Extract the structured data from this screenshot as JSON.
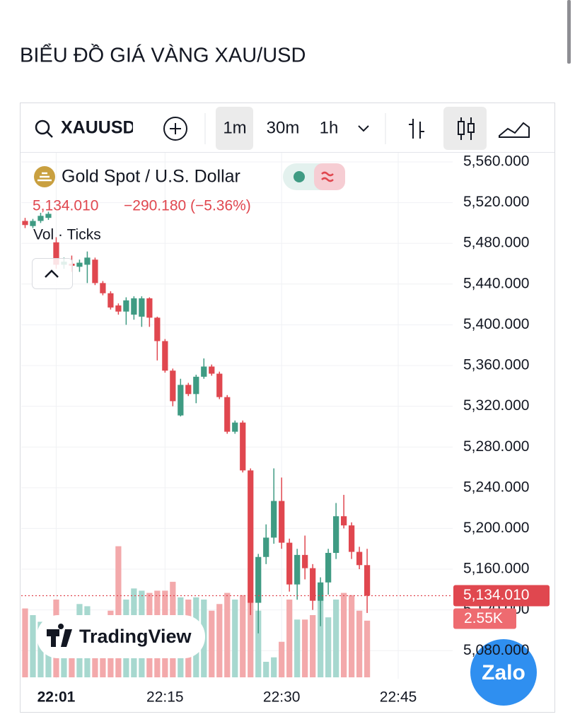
{
  "header": {
    "title": "BIỂU ĐỒ GIÁ VÀNG XAU/USD"
  },
  "toolbar": {
    "symbol": "XAUUSD",
    "intervals": [
      "1m",
      "30m",
      "1h"
    ]
  },
  "legend": {
    "name": "Gold Spot / U.S. Dollar",
    "last": "5,134.010",
    "change": "−290.180 (−5.36%)",
    "indicator": "Vol · Ticks"
  },
  "branding": {
    "tradingview": "TradingView",
    "zalo": "Zalo"
  },
  "chart_data": {
    "type": "candlestick",
    "x": [
      1317,
      1318,
      1319,
      1320,
      1321,
      1322,
      1323,
      1324,
      1325,
      1326,
      1327,
      1328,
      1329,
      1330,
      1331,
      1332,
      1333,
      1334,
      1335,
      1336,
      1337,
      1338,
      1339,
      1340,
      1341,
      1342,
      1343,
      1344,
      1345,
      1346,
      1347,
      1348,
      1349,
      1350,
      1351,
      1352,
      1353,
      1354,
      1355,
      1356,
      1357,
      1358,
      1359,
      1360,
      1361
    ],
    "open": [
      5502,
      5497,
      5502,
      5505,
      5481,
      5459,
      5460,
      5457,
      5459,
      5464,
      5441,
      5431,
      5419,
      5413,
      5410,
      5408,
      5426,
      5407,
      5384,
      5355,
      5311,
      5341,
      5332,
      5349,
      5359,
      5352,
      5329,
      5295,
      5304,
      5257,
      5127,
      5172,
      5191,
      5227,
      5186,
      5145,
      5174,
      5161,
      5129,
      5147,
      5176,
      5212,
      5203,
      5177,
      5164
    ],
    "high": [
      5505,
      5504,
      5510,
      5511,
      5486,
      5466,
      5468,
      5464,
      5472,
      5466,
      5443,
      5433,
      5421,
      5427,
      5428,
      5428,
      5427,
      5408,
      5386,
      5357,
      5347,
      5343,
      5351,
      5367,
      5361,
      5354,
      5331,
      5306,
      5306,
      5259,
      5175,
      5204,
      5259,
      5250,
      5190,
      5180,
      5193,
      5165,
      5152,
      5180,
      5225,
      5233,
      5206,
      5182,
      5180
    ],
    "low": [
      5495,
      5495,
      5500,
      5503,
      5455,
      5455,
      5452,
      5452,
      5441,
      5439,
      5429,
      5415,
      5410,
      5400,
      5405,
      5398,
      5398,
      5365,
      5353,
      5320,
      5310,
      5330,
      5323,
      5347,
      5350,
      5327,
      5293,
      5293,
      5255,
      5115,
      5097,
      5165,
      5185,
      5180,
      5138,
      5130,
      5150,
      5120,
      5104,
      5135,
      5170,
      5200,
      5170,
      5160,
      5117
    ],
    "close": [
      5498,
      5502,
      5507,
      5509,
      5459,
      5462,
      5458,
      5461,
      5466,
      5441,
      5431,
      5417,
      5413,
      5424,
      5426,
      5426,
      5407,
      5384,
      5355,
      5325,
      5341,
      5332,
      5349,
      5359,
      5352,
      5329,
      5295,
      5304,
      5257,
      5127,
      5172,
      5191,
      5227,
      5186,
      5145,
      5174,
      5161,
      5129,
      5147,
      5176,
      5212,
      5203,
      5177,
      5164,
      5134.01
    ],
    "volume": [
      3100,
      2800,
      2500,
      2600,
      3500,
      2300,
      2200,
      3300,
      3200,
      2800,
      2700,
      3000,
      5900,
      3500,
      4000,
      3900,
      3800,
      3900,
      3900,
      4300,
      3600,
      3500,
      3600,
      3500,
      3000,
      3300,
      3800,
      3500,
      3700,
      3600,
      3000,
      700,
      900,
      1600,
      3500,
      2600,
      2600,
      2800,
      3800,
      2700,
      3500,
      3800,
      3700,
      3000,
      2550
    ],
    "up_color": "#3f9b83",
    "down_color": "#e0474f",
    "volume_up_color": "#a7d8cf",
    "volume_down_color": "#f3a9ab",
    "xlim": [
      1316.5,
      1372
    ],
    "xticks": [
      {
        "value": 1321,
        "label": "22:01"
      },
      {
        "value": 1335,
        "label": "22:15"
      },
      {
        "value": 1350,
        "label": "22:30"
      },
      {
        "value": 1365,
        "label": "22:45"
      }
    ],
    "ylim": [
      5052.4,
      5569.7
    ],
    "yticks": [
      {
        "value": 5560,
        "label": "5,560.000"
      },
      {
        "value": 5520,
        "label": "5,520.000"
      },
      {
        "value": 5480,
        "label": "5,480.000"
      },
      {
        "value": 5440,
        "label": "5,440.000"
      },
      {
        "value": 5400,
        "label": "5,400.000"
      },
      {
        "value": 5360,
        "label": "5,360.000"
      },
      {
        "value": 5320,
        "label": "5,320.000"
      },
      {
        "value": 5280,
        "label": "5,280.000"
      },
      {
        "value": 5240,
        "label": "5,240.000"
      },
      {
        "value": 5200,
        "label": "5,200.000"
      },
      {
        "value": 5160,
        "label": "5,160.000"
      },
      {
        "value": 5120,
        "label": "5,120.000"
      },
      {
        "value": 5080,
        "label": "5,080.000"
      }
    ],
    "volume_ylim": [
      0,
      7000
    ],
    "grid": true,
    "price_line": {
      "value": 5134.01,
      "label": "5,134.010",
      "color": "#e0474f"
    },
    "volume_label": {
      "value": 2550,
      "label": "2.55K"
    }
  }
}
